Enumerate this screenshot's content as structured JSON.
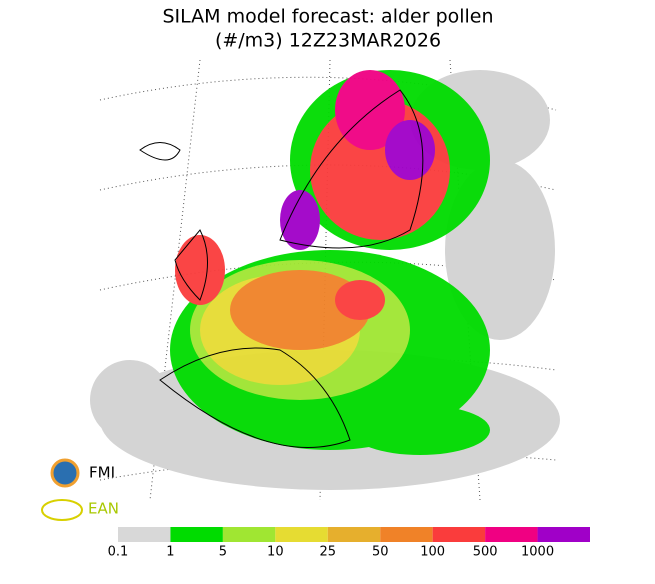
{
  "header": {
    "title_line1": "SILAM model forecast: alder pollen",
    "title_line2": "(#/m3) 12Z23MAR2026"
  },
  "logos": {
    "fmi": "FMI",
    "ean": "EAN"
  },
  "legend": {
    "labels": [
      "0.1",
      "1",
      "5",
      "10",
      "25",
      "50",
      "100",
      "500",
      "1000"
    ],
    "colors": [
      "#d8d8d8",
      "#00dc00",
      "#a0e632",
      "#e6dc32",
      "#e6af2d",
      "#f08228",
      "#fa3c3c",
      "#f00082",
      "#a000c8"
    ]
  }
}
